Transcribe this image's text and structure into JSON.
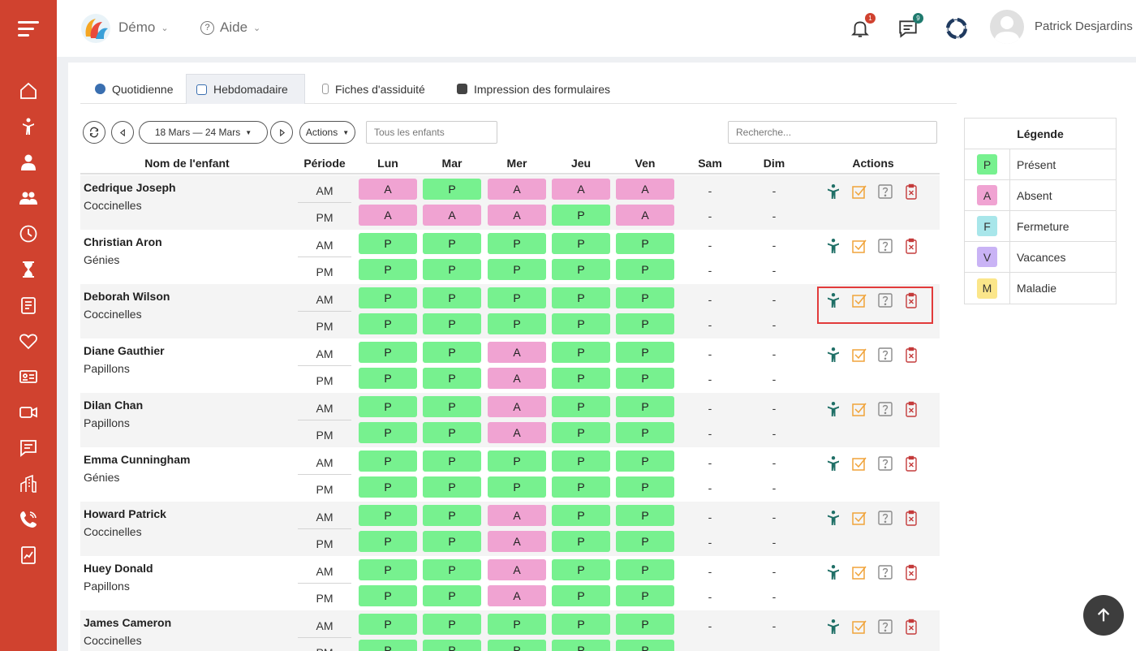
{
  "header": {
    "app_menu": "Démo",
    "help_menu": "Aide",
    "notifications_count": "1",
    "messages_count": "9",
    "user_name": "Patrick Desjardins"
  },
  "tabs": [
    {
      "label": "Quotidienne",
      "active": false
    },
    {
      "label": "Hebdomadaire",
      "active": true
    },
    {
      "label": "Fiches d'assiduité",
      "active": false
    },
    {
      "label": "Impression des formulaires",
      "active": false
    }
  ],
  "toolbar": {
    "date_range": "18 Mars — 24 Mars",
    "actions_label": "Actions",
    "children_filter_placeholder": "Tous les enfants",
    "search_placeholder": "Recherche..."
  },
  "table": {
    "headers": [
      "Nom de l'enfant",
      "Période",
      "Lun",
      "Mar",
      "Mer",
      "Jeu",
      "Ven",
      "Sam",
      "Dim",
      "Actions"
    ],
    "period_am": "AM",
    "period_pm": "PM",
    "empty_mark": "-",
    "rows": [
      {
        "name": "Cedrique Joseph",
        "group": "Coccinelles",
        "am": [
          "A",
          "P",
          "A",
          "A",
          "A"
        ],
        "pm": [
          "A",
          "A",
          "A",
          "P",
          "A"
        ]
      },
      {
        "name": "Christian Aron",
        "group": "Génies",
        "am": [
          "P",
          "P",
          "P",
          "P",
          "P"
        ],
        "pm": [
          "P",
          "P",
          "P",
          "P",
          "P"
        ]
      },
      {
        "name": "Deborah Wilson",
        "group": "Coccinelles",
        "am": [
          "P",
          "P",
          "P",
          "P",
          "P"
        ],
        "pm": [
          "P",
          "P",
          "P",
          "P",
          "P"
        ]
      },
      {
        "name": "Diane Gauthier",
        "group": "Papillons",
        "am": [
          "P",
          "P",
          "A",
          "P",
          "P"
        ],
        "pm": [
          "P",
          "P",
          "A",
          "P",
          "P"
        ]
      },
      {
        "name": "Dilan Chan",
        "group": "Papillons",
        "am": [
          "P",
          "P",
          "A",
          "P",
          "P"
        ],
        "pm": [
          "P",
          "P",
          "A",
          "P",
          "P"
        ]
      },
      {
        "name": "Emma Cunningham",
        "group": "Génies",
        "am": [
          "P",
          "P",
          "P",
          "P",
          "P"
        ],
        "pm": [
          "P",
          "P",
          "P",
          "P",
          "P"
        ]
      },
      {
        "name": "Howard Patrick",
        "group": "Coccinelles",
        "am": [
          "P",
          "P",
          "A",
          "P",
          "P"
        ],
        "pm": [
          "P",
          "P",
          "A",
          "P",
          "P"
        ]
      },
      {
        "name": "Huey Donald",
        "group": "Papillons",
        "am": [
          "P",
          "P",
          "A",
          "P",
          "P"
        ],
        "pm": [
          "P",
          "P",
          "A",
          "P",
          "P"
        ]
      },
      {
        "name": "James Cameron",
        "group": "Coccinelles",
        "am": [
          "P",
          "P",
          "P",
          "P",
          "P"
        ],
        "pm": [
          "P",
          "P",
          "P",
          "P",
          "P"
        ]
      }
    ]
  },
  "legend": {
    "title": "Légende",
    "items": [
      {
        "code": "P",
        "label": "Présent",
        "color": "#77f18f"
      },
      {
        "code": "A",
        "label": "Absent",
        "color": "#f0a3d2"
      },
      {
        "code": "F",
        "label": "Fermeture",
        "color": "#a8e6ea"
      },
      {
        "code": "V",
        "label": "Vacances",
        "color": "#c9b3f5"
      },
      {
        "code": "M",
        "label": "Maladie",
        "color": "#fbe68a"
      }
    ]
  },
  "colors": {
    "sidebar": "#d0422f",
    "present": "#77f18f",
    "absent": "#f0a3d2",
    "highlight": "#e23b3b"
  }
}
